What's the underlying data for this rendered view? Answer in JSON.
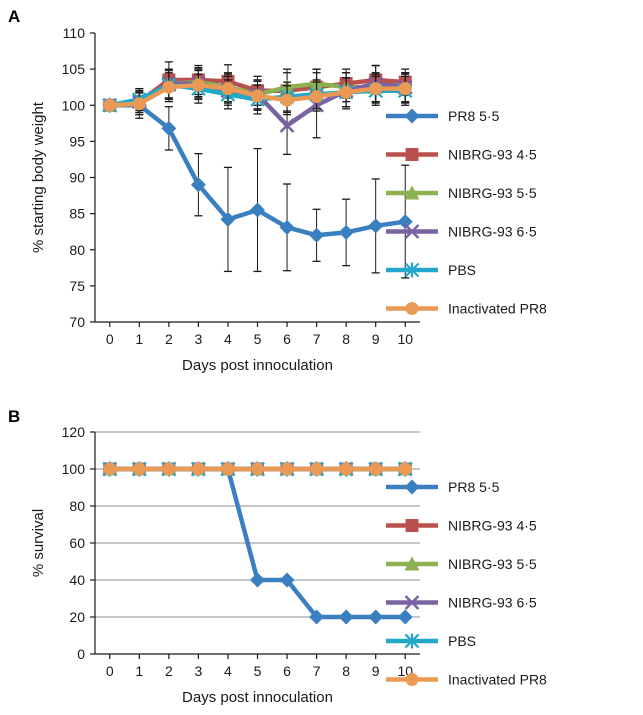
{
  "colors": {
    "PR8 5·5": "#3a7fc0",
    "NIBRG-93 4·5": "#b9504d",
    "NIBRG-93 5·5": "#8db050",
    "NIBRG-93 6·5": "#7a63a2",
    "PBS": "#22a8c8",
    "Inactivated PR8": "#eb9a55"
  },
  "markers": {
    "PR8 5·5": "diamond",
    "NIBRG-93 4·5": "square",
    "NIBRG-93 5·5": "triangle",
    "NIBRG-93 6·5": "x",
    "PBS": "asterisk",
    "Inactivated PR8": "circle"
  },
  "chart_data": [
    {
      "panel": "A",
      "type": "line",
      "ylabel": "% starting body weight",
      "xlabel": "Days post innoculation",
      "ylim": [
        70,
        110
      ],
      "yticks": [
        70,
        75,
        80,
        85,
        90,
        95,
        100,
        105,
        110
      ],
      "x": [
        0,
        1,
        2,
        3,
        4,
        5,
        6,
        7,
        8,
        9,
        10
      ],
      "error_bars": true,
      "legend_position": "right",
      "series": [
        {
          "name": "PR8 5·5",
          "values": [
            100,
            100,
            96.8,
            89,
            84.2,
            85.5,
            83.1,
            82,
            82.4,
            83.3,
            83.9
          ],
          "errors": [
            0,
            1.8,
            3,
            4.3,
            7.2,
            8.5,
            6,
            3.6,
            4.6,
            6.5,
            7.8
          ]
        },
        {
          "name": "NIBRG-93 4·5",
          "values": [
            100,
            100.5,
            103.5,
            103.5,
            103.3,
            102,
            102,
            102.5,
            103,
            103.5,
            103.2
          ],
          "errors": [
            0,
            1.8,
            2.5,
            2,
            2.3,
            2,
            3,
            2.5,
            2,
            2,
            1.8
          ]
        },
        {
          "name": "NIBRG-93 5·5",
          "values": [
            100,
            100.5,
            103,
            103.2,
            102.5,
            101.5,
            102.5,
            103,
            102.5,
            102.5,
            102.5
          ],
          "errors": [
            0,
            1.5,
            2,
            2,
            2,
            2,
            2,
            2,
            2,
            2,
            2
          ]
        },
        {
          "name": "NIBRG-93 6·5",
          "values": [
            100,
            100.5,
            103,
            103,
            102,
            101.5,
            97.2,
            100,
            102,
            103,
            102.5
          ],
          "errors": [
            0,
            1.5,
            2,
            2,
            2,
            2,
            4,
            4.5,
            2.5,
            2.5,
            2
          ]
        },
        {
          "name": "PBS",
          "values": [
            100,
            100.8,
            102.8,
            102.3,
            101.5,
            100.8,
            101.2,
            101.5,
            101.8,
            102,
            102
          ],
          "errors": [
            0,
            1.5,
            2,
            2,
            2,
            2,
            2,
            2,
            2,
            2,
            2
          ]
        },
        {
          "name": "Inactivated PR8",
          "values": [
            100,
            100.2,
            102.5,
            102.8,
            102.3,
            101.3,
            100.7,
            101.2,
            101.8,
            102.3,
            102.3
          ],
          "errors": [
            0,
            1.5,
            2,
            2,
            2,
            2,
            2,
            2,
            2,
            2,
            2
          ]
        }
      ]
    },
    {
      "panel": "B",
      "type": "line",
      "ylabel": "% survival",
      "xlabel": "Days post innoculation",
      "ylim": [
        0,
        120
      ],
      "yticks": [
        0,
        20,
        40,
        60,
        80,
        100,
        120
      ],
      "x": [
        0,
        1,
        2,
        3,
        4,
        5,
        6,
        7,
        8,
        9,
        10
      ],
      "grid": true,
      "legend_position": "right",
      "series": [
        {
          "name": "PR8 5·5",
          "values": [
            100,
            100,
            100,
            100,
            100,
            40,
            40,
            20,
            20,
            20,
            20
          ]
        },
        {
          "name": "NIBRG-93 4·5",
          "values": [
            100,
            100,
            100,
            100,
            100,
            100,
            100,
            100,
            100,
            100,
            100
          ]
        },
        {
          "name": "NIBRG-93 5·5",
          "values": [
            100,
            100,
            100,
            100,
            100,
            100,
            100,
            100,
            100,
            100,
            100
          ]
        },
        {
          "name": "NIBRG-93 6·5",
          "values": [
            100,
            100,
            100,
            100,
            100,
            100,
            100,
            100,
            100,
            100,
            100
          ]
        },
        {
          "name": "PBS",
          "values": [
            100,
            100,
            100,
            100,
            100,
            100,
            100,
            100,
            100,
            100,
            100
          ]
        },
        {
          "name": "Inactivated PR8",
          "values": [
            100,
            100,
            100,
            100,
            100,
            100,
            100,
            100,
            100,
            100,
            100
          ]
        }
      ]
    }
  ]
}
